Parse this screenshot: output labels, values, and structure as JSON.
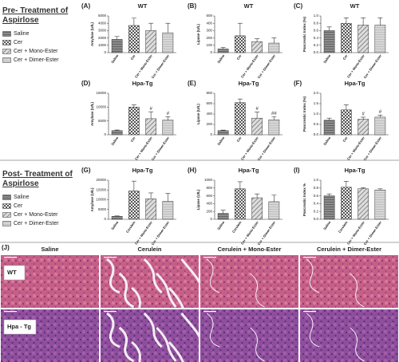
{
  "sections": [
    {
      "title": "Pre- Treatment of Aspirlose",
      "legend": [
        "Saline",
        "Cer",
        "Cer + Mono-Ester",
        "Cer + Dimer-Ester"
      ]
    },
    {
      "title": "Post- Treatment of Aspirlose",
      "legend": [
        "Saline",
        "Cer",
        "Cer + Mono-Ester",
        "Cer + Dimer-Ester"
      ]
    }
  ],
  "chart_data": [
    {
      "type": "bar",
      "panel": "(A)",
      "title": "WT",
      "y_label": "Amylase (U/L)",
      "categories": [
        "Saline",
        "Cer",
        "Cer + Mono-Ester",
        "Cer + Dimer-Ester"
      ],
      "values": [
        1800,
        3700,
        3000,
        2700
      ],
      "errors": [
        400,
        1000,
        1000,
        1300
      ],
      "ylim": [
        0,
        5000
      ],
      "yticks": [
        0,
        1000,
        2000,
        3000,
        4000,
        5000
      ]
    },
    {
      "type": "bar",
      "panel": "(B)",
      "title": "WT",
      "y_label": "Lipase (U/L)",
      "categories": [
        "Saline",
        "Cer",
        "Cer + Mono-Ester",
        "Cer + Dimer-Ester"
      ],
      "values": [
        50,
        230,
        150,
        130
      ],
      "errors": [
        20,
        170,
        40,
        70
      ],
      "ylim": [
        0,
        500
      ],
      "yticks": [
        0,
        100,
        200,
        300,
        400,
        500
      ]
    },
    {
      "type": "bar",
      "panel": "(C)",
      "title": "WT",
      "y_label": "Pancreatic Index (%)",
      "categories": [
        "Saline",
        "Cer",
        "Cer + Mono-Ester",
        "Cer + Dimer-Ester"
      ],
      "values": [
        0.6,
        0.8,
        0.75,
        0.75
      ],
      "errors": [
        0.1,
        0.15,
        0.2,
        0.2
      ],
      "ylim": [
        0,
        1
      ],
      "yticks": [
        {
          "value": 0,
          "label": "0.0"
        },
        0.2,
        0.4,
        0.6,
        0.8,
        {
          "value": 1,
          "label": "1.0"
        }
      ]
    },
    {
      "type": "bar",
      "panel": "(D)",
      "title": "Hpa-Tg",
      "y_label": "Amylase (U/L)",
      "categories": [
        "Saline",
        "Cer",
        "Cer + Mono-Ester",
        "Cer + Dimer-Ester"
      ],
      "values": [
        1500,
        10000,
        5800,
        5300
      ],
      "errors": [
        200,
        800,
        2500,
        1200
      ],
      "value_annotations": [
        null,
        null,
        "#",
        "#"
      ],
      "ylim": [
        0,
        15000
      ],
      "yticks": [
        0,
        5000,
        10000,
        15000
      ]
    },
    {
      "type": "bar",
      "panel": "(E)",
      "title": "Hpa-Tg",
      "y_label": "Lipase (U/L)",
      "categories": [
        "Saline",
        "Cer",
        "Cer + Mono-Ester",
        "Cer + Dimer-Ester"
      ],
      "values": [
        80,
        620,
        320,
        290
      ],
      "errors": [
        10,
        70,
        120,
        60
      ],
      "value_annotations": [
        null,
        null,
        "#",
        "##"
      ],
      "ylim": [
        0,
        800
      ],
      "yticks": [
        0,
        200,
        400,
        600,
        800
      ]
    },
    {
      "type": "bar",
      "panel": "(F)",
      "title": "Hpa-Tg",
      "y_label": "Pancreatic Index (%)",
      "categories": [
        "Saline",
        "Cer",
        "Cer + Mono-Ester",
        "Cer + Dimer-Ester"
      ],
      "values": [
        0.7,
        1.2,
        0.75,
        0.85
      ],
      "errors": [
        0.1,
        0.25,
        0.1,
        0.1
      ],
      "value_annotations": [
        null,
        null,
        "#",
        "#"
      ],
      "ylim": [
        0,
        2
      ],
      "yticks": [
        {
          "value": 0,
          "label": "0.0"
        },
        0.5,
        {
          "value": 1,
          "label": "1.0"
        },
        1.5,
        {
          "value": 2,
          "label": "2.0"
        }
      ]
    },
    {
      "type": "bar",
      "panel": "(G)",
      "title": "Hpa-Tg",
      "y_label": "Amylase (U/L)",
      "categories": [
        "Saline",
        "Cerulein",
        "Cer + Mono-Ester",
        "Cer + Dimer-Ester"
      ],
      "values": [
        1500,
        14500,
        10500,
        9200
      ],
      "errors": [
        200,
        5000,
        3000,
        4000
      ],
      "ylim": [
        0,
        20000
      ],
      "yticks": [
        0,
        5000,
        10000,
        15000,
        20000
      ]
    },
    {
      "type": "bar",
      "panel": "(H)",
      "title": "Hpa-Tg",
      "y_label": "Lipase (U/L)",
      "categories": [
        "Saline",
        "Cerulein",
        "Cer + Mono-Ester",
        "Cer + Dimer-Ester"
      ],
      "values": [
        150,
        780,
        550,
        450
      ],
      "errors": [
        80,
        180,
        100,
        170
      ],
      "ylim": [
        0,
        1000
      ],
      "yticks": [
        0,
        200,
        400,
        600,
        800,
        1000
      ]
    },
    {
      "type": "bar",
      "panel": "(I)",
      "title": "Hpa-Tg",
      "y_label": "Pancreatic Index %",
      "categories": [
        "Saline",
        "Cerulein",
        "Cer + Mono-Ester",
        "Cer + Dimer-Ester"
      ],
      "values": [
        0.6,
        0.82,
        0.78,
        0.75
      ],
      "errors": [
        0.05,
        0.15,
        0.03,
        0.03
      ],
      "ylim": [
        0,
        1
      ],
      "yticks": [
        {
          "value": 0,
          "label": "0.0"
        },
        0.2,
        0.4,
        0.6,
        0.8,
        {
          "value": 1,
          "label": "1.0"
        }
      ]
    }
  ],
  "histology": {
    "panel": "(J)",
    "columns": [
      "Saline",
      "Cerulein",
      "Cerulein + Mono-Ester",
      "Cerulein + Dimer-Ester"
    ],
    "rows": [
      "WT",
      "Hpa - Tg"
    ]
  }
}
